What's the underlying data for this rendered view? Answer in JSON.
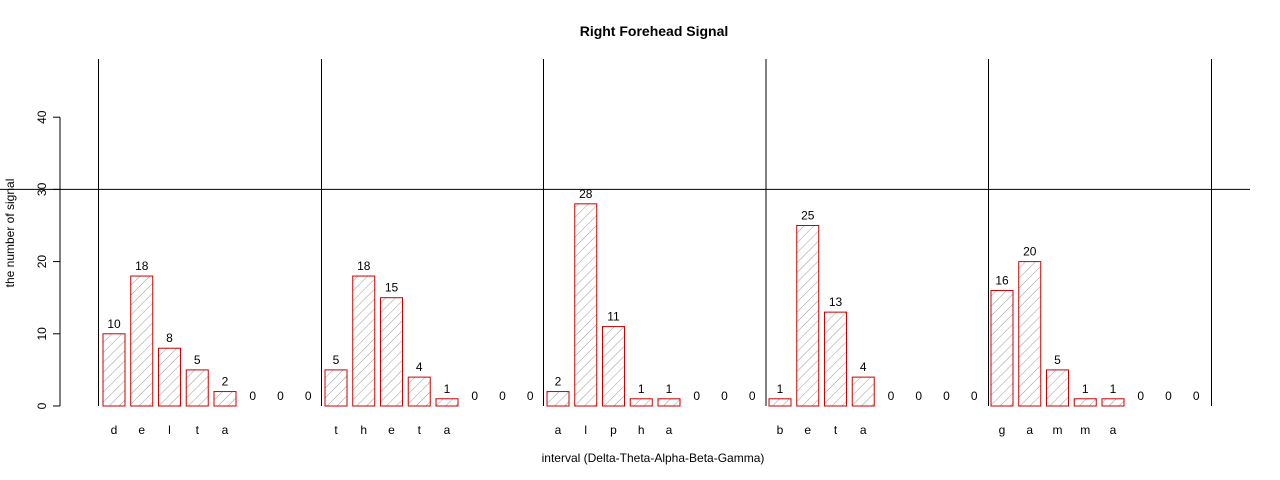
{
  "chart_data": {
    "type": "bar",
    "title": "Right Forehead Signal",
    "xlabel": "interval (Delta-Theta-Alpha-Beta-Gamma)",
    "ylabel": "the number of signal",
    "ylim": [
      0,
      47
    ],
    "yticks": [
      0,
      10,
      20,
      30,
      40
    ],
    "reference_line": 30,
    "categories": [
      "d",
      "e",
      "l",
      "t",
      "a",
      "",
      "",
      "",
      "t",
      "h",
      "e",
      "t",
      "a",
      "",
      "",
      "",
      "a",
      "l",
      "p",
      "h",
      "a",
      "",
      "",
      "",
      "b",
      "e",
      "t",
      "a",
      "",
      "",
      "",
      "",
      "g",
      "a",
      "m",
      "m",
      "a",
      "",
      "",
      ""
    ],
    "groups": [
      "delta",
      "theta",
      "alpha",
      "beta",
      "gamma"
    ],
    "values": [
      10,
      18,
      8,
      5,
      2,
      0,
      0,
      0,
      5,
      18,
      15,
      4,
      1,
      0,
      0,
      0,
      2,
      28,
      11,
      1,
      1,
      0,
      0,
      0,
      1,
      25,
      13,
      4,
      0,
      0,
      0,
      0,
      16,
      20,
      5,
      1,
      1,
      0,
      0,
      0
    ],
    "bar_color": "#cc0000",
    "hatch_color": "#888888"
  }
}
